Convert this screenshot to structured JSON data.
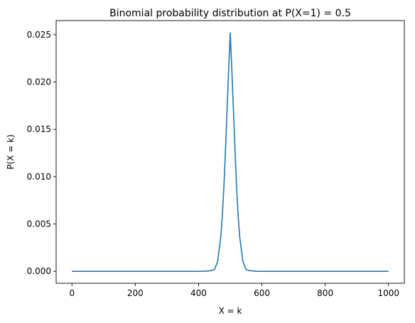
{
  "chart_data": {
    "type": "line",
    "title": "Binomial probability distribution at P(X=1) = 0.5",
    "xlabel": "X = k",
    "ylabel": "P(X = k)",
    "xlim": [
      -50,
      1050
    ],
    "ylim": [
      -0.00126,
      0.02649
    ],
    "xticks": [
      0,
      200,
      400,
      600,
      800,
      1000
    ],
    "yticks": [
      0.0,
      0.005,
      0.01,
      0.015,
      0.02,
      0.025
    ],
    "ytick_labels": [
      "0.000",
      "0.005",
      "0.010",
      "0.015",
      "0.020",
      "0.025"
    ],
    "grid": false,
    "series": [
      {
        "color": "#1f77b4",
        "x": [
          0,
          100,
          200,
          300,
          400,
          420,
          440,
          450,
          460,
          470,
          475,
          480,
          485,
          490,
          495,
          500,
          505,
          510,
          515,
          520,
          525,
          530,
          540,
          550,
          560,
          580,
          600,
          700,
          800,
          900,
          1000
        ],
        "y": [
          0,
          0,
          0,
          0,
          1.1e-06,
          8.3e-06,
          7.49e-05,
          0.000185,
          0.00101,
          0.0036,
          0.00585,
          0.00895,
          0.0128,
          0.01715,
          0.0213,
          0.02523,
          0.0213,
          0.01715,
          0.0128,
          0.00895,
          0.00585,
          0.0036,
          0.00101,
          0.000185,
          7.49e-05,
          8.3e-06,
          1.1e-06,
          0,
          0,
          0,
          0
        ]
      }
    ]
  }
}
